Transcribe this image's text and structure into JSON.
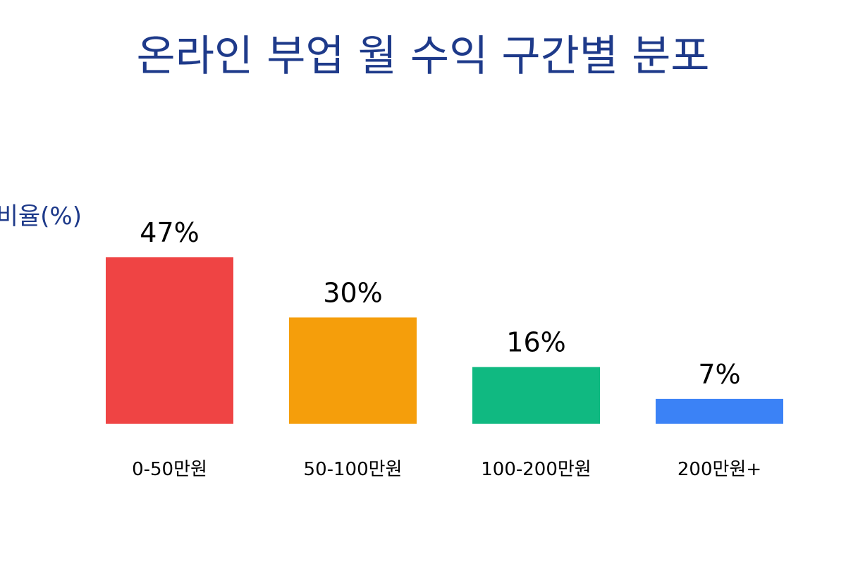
{
  "chart_data": {
    "type": "bar",
    "title": "온라인 부업 월 수익 구간별 분포",
    "xlabel": "",
    "ylabel": "비율(%)",
    "categories": [
      "0-50만원",
      "50-100만원",
      "100-200만원",
      "200만원+"
    ],
    "values": [
      47,
      30,
      16,
      7
    ],
    "value_labels": [
      "47%",
      "30%",
      "16%",
      "7%"
    ],
    "ylim": [
      0,
      50
    ],
    "grid": false,
    "legend": "none",
    "colors": [
      "#ef4444",
      "#f59e0b",
      "#10b981",
      "#3b82f6"
    ],
    "title_color": "#1e3a8a",
    "ylabel_color": "#1e3a8a"
  }
}
